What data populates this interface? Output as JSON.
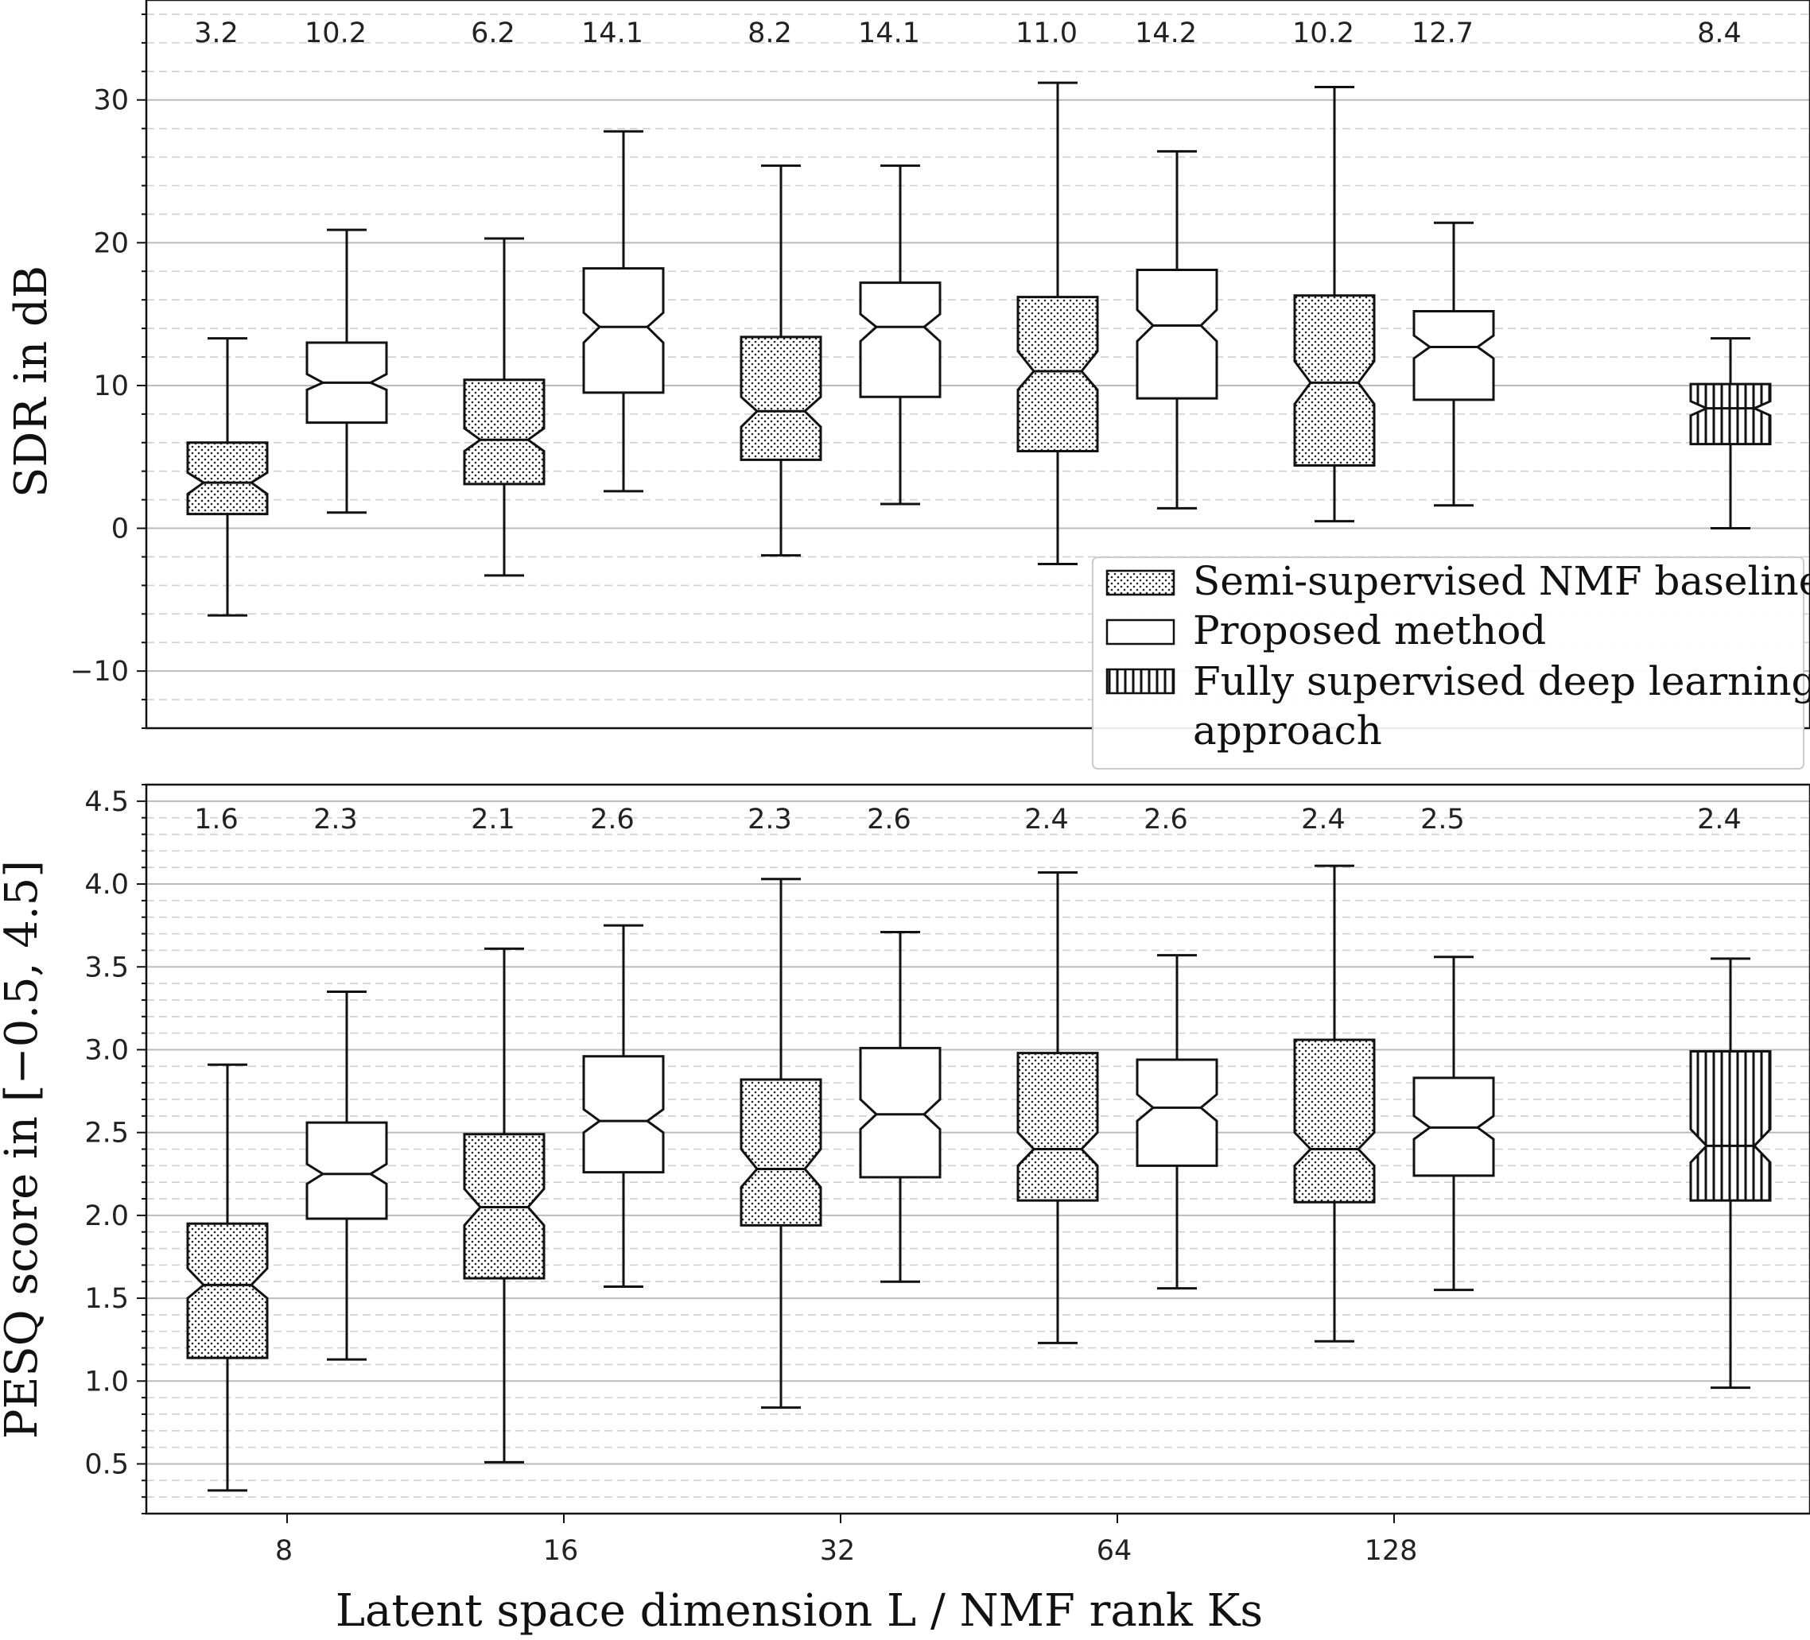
{
  "chart_data": [
    {
      "type": "box",
      "title": "",
      "xlabel": "",
      "ylabel": "SDR in dB",
      "ylim": [
        -14,
        37
      ],
      "yticks": [
        -10,
        0,
        10,
        20,
        30
      ],
      "ytick_labels": [
        "−10",
        "0",
        "10",
        "20",
        "30"
      ],
      "minor_grid": true,
      "boxes": [
        {
          "group": "8",
          "series": "Semi-supervised NMF baseline",
          "whislo": -6.1,
          "q1": 1.0,
          "median": 3.2,
          "q3": 6.0,
          "whishi": 13.3,
          "notch_lo": 2.4,
          "notch_hi": 3.9,
          "label": "3.2"
        },
        {
          "group": "8",
          "series": "Proposed method",
          "whislo": 1.1,
          "q1": 7.4,
          "median": 10.2,
          "q3": 13.0,
          "whishi": 20.9,
          "notch_lo": 9.7,
          "notch_hi": 10.8,
          "label": "10.2"
        },
        {
          "group": "16",
          "series": "Semi-supervised NMF baseline",
          "whislo": -3.3,
          "q1": 3.1,
          "median": 6.2,
          "q3": 10.4,
          "whishi": 20.3,
          "notch_lo": 5.4,
          "notch_hi": 7.0,
          "label": "6.2"
        },
        {
          "group": "16",
          "series": "Proposed method",
          "whislo": 2.6,
          "q1": 9.5,
          "median": 14.1,
          "q3": 18.2,
          "whishi": 27.8,
          "notch_lo": 13.0,
          "notch_hi": 15.1,
          "label": "14.1"
        },
        {
          "group": "32",
          "series": "Semi-supervised NMF baseline",
          "whislo": -1.9,
          "q1": 4.8,
          "median": 8.2,
          "q3": 13.4,
          "whishi": 25.4,
          "notch_lo": 7.1,
          "notch_hi": 9.2,
          "label": "8.2"
        },
        {
          "group": "32",
          "series": "Proposed method",
          "whislo": 1.7,
          "q1": 9.2,
          "median": 14.1,
          "q3": 17.2,
          "whishi": 25.4,
          "notch_lo": 13.1,
          "notch_hi": 15.0,
          "label": "14.1"
        },
        {
          "group": "64",
          "series": "Semi-supervised NMF baseline",
          "whislo": -2.5,
          "q1": 5.4,
          "median": 11.0,
          "q3": 16.2,
          "whishi": 31.2,
          "notch_lo": 9.7,
          "notch_hi": 12.4,
          "label": "11.0"
        },
        {
          "group": "64",
          "series": "Proposed method",
          "whislo": 1.4,
          "q1": 9.1,
          "median": 14.2,
          "q3": 18.1,
          "whishi": 26.4,
          "notch_lo": 13.1,
          "notch_hi": 15.3,
          "label": "14.2"
        },
        {
          "group": "128",
          "series": "Semi-supervised NMF baseline",
          "whislo": 0.5,
          "q1": 4.4,
          "median": 10.2,
          "q3": 16.3,
          "whishi": 30.9,
          "notch_lo": 8.7,
          "notch_hi": 11.7,
          "label": "10.2"
        },
        {
          "group": "128",
          "series": "Proposed method",
          "whislo": 1.6,
          "q1": 9.0,
          "median": 12.7,
          "q3": 15.2,
          "whishi": 21.4,
          "notch_lo": 11.9,
          "notch_hi": 13.5,
          "label": "12.7"
        },
        {
          "group": "",
          "series": "Fully supervised deep learning approach",
          "whislo": 0.0,
          "q1": 5.9,
          "median": 8.4,
          "q3": 10.1,
          "whishi": 13.3,
          "notch_lo": 7.9,
          "notch_hi": 8.9,
          "label": "8.4"
        }
      ]
    },
    {
      "type": "box",
      "title": "",
      "xlabel": "Latent space dimension L / NMF rank Ks",
      "ylabel": "PESQ score in [−0.5, 4.5]",
      "ylim": [
        0.2,
        4.6
      ],
      "yticks": [
        0.5,
        1.0,
        1.5,
        2.0,
        2.5,
        3.0,
        3.5,
        4.0,
        4.5
      ],
      "ytick_labels": [
        "0.5",
        "1.0",
        "1.5",
        "2.0",
        "2.5",
        "3.0",
        "3.5",
        "4.0",
        "4.5"
      ],
      "xtick_labels": [
        "8",
        "16",
        "32",
        "64",
        "128"
      ],
      "minor_grid": true,
      "boxes": [
        {
          "group": "8",
          "series": "Semi-supervised NMF baseline",
          "whislo": 0.34,
          "q1": 1.14,
          "median": 1.58,
          "q3": 1.95,
          "whishi": 2.91,
          "notch_lo": 1.5,
          "notch_hi": 1.68,
          "label": "1.6"
        },
        {
          "group": "8",
          "series": "Proposed method",
          "whislo": 1.13,
          "q1": 1.98,
          "median": 2.25,
          "q3": 2.56,
          "whishi": 3.35,
          "notch_lo": 2.19,
          "notch_hi": 2.31,
          "label": "2.3"
        },
        {
          "group": "16",
          "series": "Semi-supervised NMF baseline",
          "whislo": 0.51,
          "q1": 1.62,
          "median": 2.05,
          "q3": 2.49,
          "whishi": 3.61,
          "notch_lo": 1.94,
          "notch_hi": 2.16,
          "label": "2.1"
        },
        {
          "group": "16",
          "series": "Proposed method",
          "whislo": 1.57,
          "q1": 2.26,
          "median": 2.57,
          "q3": 2.96,
          "whishi": 3.75,
          "notch_lo": 2.5,
          "notch_hi": 2.64,
          "label": "2.6"
        },
        {
          "group": "32",
          "series": "Semi-supervised NMF baseline",
          "whislo": 0.84,
          "q1": 1.94,
          "median": 2.28,
          "q3": 2.82,
          "whishi": 4.03,
          "notch_lo": 2.17,
          "notch_hi": 2.4,
          "label": "2.3"
        },
        {
          "group": "32",
          "series": "Proposed method",
          "whislo": 1.6,
          "q1": 2.23,
          "median": 2.61,
          "q3": 3.01,
          "whishi": 3.71,
          "notch_lo": 2.52,
          "notch_hi": 2.7,
          "label": "2.6"
        },
        {
          "group": "64",
          "series": "Semi-supervised NMF baseline",
          "whislo": 1.23,
          "q1": 2.09,
          "median": 2.4,
          "q3": 2.98,
          "whishi": 4.07,
          "notch_lo": 2.3,
          "notch_hi": 2.5,
          "label": "2.4"
        },
        {
          "group": "64",
          "series": "Proposed method",
          "whislo": 1.56,
          "q1": 2.3,
          "median": 2.65,
          "q3": 2.94,
          "whishi": 3.57,
          "notch_lo": 2.57,
          "notch_hi": 2.73,
          "label": "2.6"
        },
        {
          "group": "128",
          "series": "Semi-supervised NMF baseline",
          "whislo": 1.24,
          "q1": 2.08,
          "median": 2.4,
          "q3": 3.06,
          "whishi": 4.11,
          "notch_lo": 2.3,
          "notch_hi": 2.5,
          "label": "2.4"
        },
        {
          "group": "128",
          "series": "Proposed method",
          "whislo": 1.55,
          "q1": 2.24,
          "median": 2.53,
          "q3": 2.83,
          "whishi": 3.56,
          "notch_lo": 2.46,
          "notch_hi": 2.6,
          "label": "2.5"
        },
        {
          "group": "",
          "series": "Fully supervised deep learning approach",
          "whislo": 0.96,
          "q1": 2.09,
          "median": 2.42,
          "q3": 2.99,
          "whishi": 3.55,
          "notch_lo": 2.32,
          "notch_hi": 2.52,
          "label": "2.4"
        }
      ]
    }
  ],
  "legend": {
    "placement": "lower-right of top panel",
    "items": [
      {
        "label": "Semi-supervised NMF baseline",
        "pattern": "dots"
      },
      {
        "label": "Proposed method",
        "pattern": "none"
      },
      {
        "label": "Fully supervised deep learning",
        "label_cont": "approach",
        "pattern": "vertical-lines"
      }
    ]
  },
  "colors": {
    "box_edge": "#111111",
    "grid_major": "#bbbbbb",
    "grid_minor": "#d0d0d0",
    "background": "#ffffff"
  }
}
